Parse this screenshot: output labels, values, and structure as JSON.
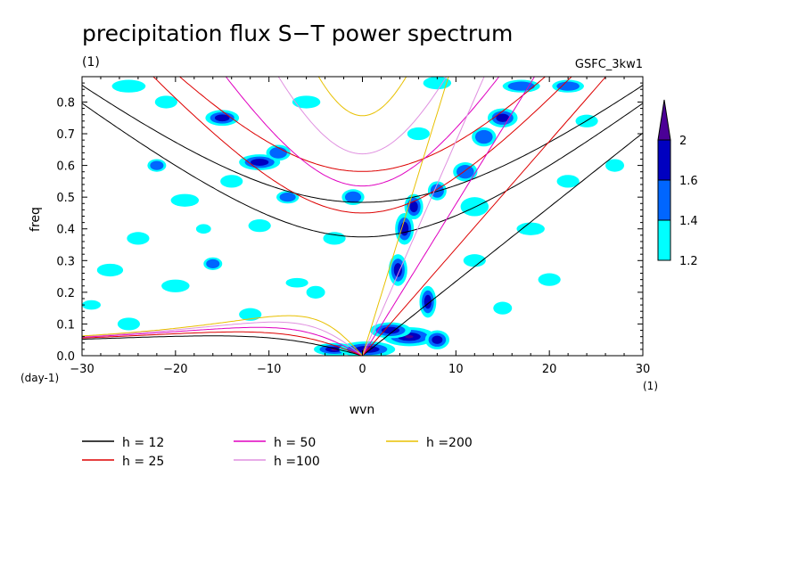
{
  "chart_data": {
    "type": "heatmap",
    "title": "precipitation flux S−T power spectrum",
    "subtitle_left": "(1)",
    "subtitle_right": "GSFC_3kw1",
    "xlabel": "wvn",
    "ylabel": "freq",
    "x_unit_label": "(1)",
    "y_unit_label": "(day-1)",
    "xlim": [
      -30,
      30
    ],
    "ylim": [
      0,
      0.88
    ],
    "xticks": [
      -30,
      -20,
      -10,
      0,
      10,
      20,
      30
    ],
    "xtick_labels": [
      "−30",
      "−20",
      "−10",
      "0",
      "10",
      "20",
      "30"
    ],
    "yticks": [
      0,
      0.1,
      0.2,
      0.3,
      0.4,
      0.5,
      0.6,
      0.7,
      0.8
    ],
    "ytick_labels": [
      "0.0",
      "0.1",
      "0.2",
      "0.3",
      "0.4",
      "0.5",
      "0.6",
      "0.7",
      "0.8"
    ],
    "colorbar": {
      "levels": [
        1.2,
        1.4,
        1.6,
        2
      ],
      "labels": [
        "1.2",
        "1.4",
        "1.6",
        "2"
      ],
      "colors": [
        "#00ffff",
        "#0066ff",
        "#0000c0",
        "#4b0096"
      ]
    },
    "dispersion_curves": [
      {
        "label": "h = 12",
        "h": 12,
        "color": "#000000"
      },
      {
        "label": "h = 25",
        "h": 25,
        "color": "#dd0000"
      },
      {
        "label": "h = 50",
        "h": 50,
        "color": "#e000c0"
      },
      {
        "label": "h =100",
        "h": 100,
        "color": "#e090e0"
      },
      {
        "label": "h =200",
        "h": 200,
        "color": "#e8c000"
      }
    ],
    "blobs": [
      [
        -3,
        0.02,
        2.2,
        0.02,
        4
      ],
      [
        0.5,
        0.02,
        3,
        0.025,
        4
      ],
      [
        5,
        0.06,
        2.8,
        0.03,
        4
      ],
      [
        3,
        0.08,
        2.2,
        0.025,
        3
      ],
      [
        7,
        0.17,
        0.9,
        0.05,
        3
      ],
      [
        8,
        0.05,
        1.3,
        0.03,
        3
      ],
      [
        3.8,
        0.27,
        1.0,
        0.05,
        3
      ],
      [
        4.5,
        0.4,
        1.0,
        0.05,
        3
      ],
      [
        5.5,
        0.47,
        1.0,
        0.04,
        3
      ],
      [
        8,
        0.52,
        1.0,
        0.03,
        2
      ],
      [
        11,
        0.58,
        1.3,
        0.03,
        2
      ],
      [
        13,
        0.69,
        1.3,
        0.03,
        2
      ],
      [
        15,
        0.75,
        1.6,
        0.03,
        3
      ],
      [
        17,
        0.85,
        2.0,
        0.02,
        2
      ],
      [
        22,
        0.85,
        1.7,
        0.02,
        2
      ],
      [
        -15,
        0.75,
        1.8,
        0.025,
        3
      ],
      [
        -11,
        0.61,
        2.2,
        0.025,
        3
      ],
      [
        -9,
        0.64,
        1.3,
        0.025,
        2
      ],
      [
        -8,
        0.5,
        1.2,
        0.02,
        2
      ],
      [
        -22,
        0.6,
        1.0,
        0.02,
        2
      ],
      [
        -16,
        0.29,
        1.0,
        0.02,
        2
      ],
      [
        -17,
        0.4,
        0.8,
        0.015,
        1
      ],
      [
        -1,
        0.5,
        1.2,
        0.025,
        2
      ],
      [
        -25,
        0.85,
        1.8,
        0.02,
        1
      ],
      [
        -21,
        0.8,
        1.2,
        0.02,
        1
      ],
      [
        -6,
        0.8,
        1.5,
        0.02,
        1
      ],
      [
        -19,
        0.49,
        1.5,
        0.02,
        1
      ],
      [
        -27,
        0.27,
        1.4,
        0.02,
        1
      ],
      [
        -11,
        0.41,
        1.2,
        0.02,
        1
      ],
      [
        -3,
        0.37,
        1.2,
        0.02,
        1
      ],
      [
        -20,
        0.22,
        1.5,
        0.02,
        1
      ],
      [
        12,
        0.47,
        1.5,
        0.03,
        1
      ],
      [
        18,
        0.4,
        1.5,
        0.02,
        1
      ],
      [
        22,
        0.55,
        1.2,
        0.02,
        1
      ],
      [
        27,
        0.6,
        1.0,
        0.02,
        1
      ],
      [
        12,
        0.3,
        1.2,
        0.02,
        1
      ],
      [
        20,
        0.24,
        1.2,
        0.02,
        1
      ],
      [
        -25,
        0.1,
        1.2,
        0.02,
        1
      ],
      [
        -12,
        0.13,
        1.2,
        0.02,
        1
      ],
      [
        15,
        0.15,
        1.0,
        0.02,
        1
      ],
      [
        -5,
        0.2,
        1.0,
        0.02,
        1
      ],
      [
        -14,
        0.55,
        1.2,
        0.02,
        1
      ],
      [
        -29,
        0.16,
        1.0,
        0.015,
        1
      ],
      [
        6,
        0.7,
        1.2,
        0.02,
        1
      ],
      [
        -24,
        0.37,
        1.2,
        0.02,
        1
      ],
      [
        24,
        0.74,
        1.2,
        0.02,
        1
      ],
      [
        -7,
        0.23,
        1.2,
        0.015,
        1
      ],
      [
        8,
        0.86,
        1.5,
        0.02,
        1
      ]
    ]
  }
}
